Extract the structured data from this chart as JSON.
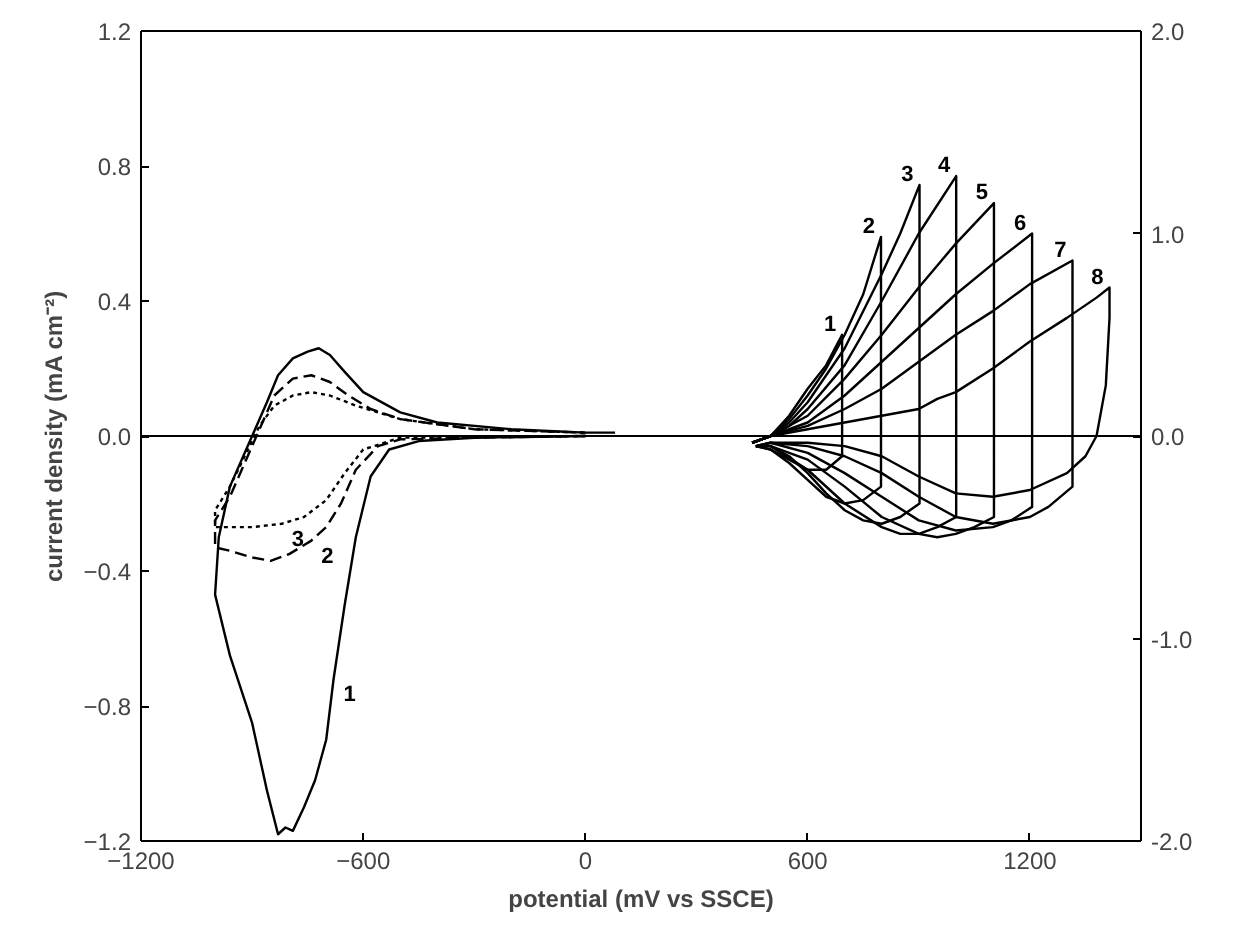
{
  "chart_data": {
    "type": "line",
    "xlabel": "potential (mV vs SSCE)",
    "ylabel": "current density (mA cm⁻²)",
    "xlim": [
      -1200,
      1500
    ],
    "xticks": [
      -1200,
      -600,
      0,
      600,
      1200
    ],
    "ylim": [
      -1.2,
      1.2
    ],
    "yticks": [
      -1.2,
      -0.8,
      -0.4,
      {
        "value": 0,
        "label": "0.0"
      },
      0.4,
      0.8,
      1.2
    ],
    "y2lim": [
      -2.0,
      2.0
    ],
    "y2ticks": [
      {
        "value": -2,
        "label": "-2.0"
      },
      {
        "value": -1,
        "label": "-1.0"
      },
      {
        "value": 0,
        "label": "0.0"
      },
      {
        "value": 1,
        "label": "1.0"
      },
      {
        "value": 2,
        "label": "2.0"
      }
    ],
    "grid": false,
    "marker": "none",
    "ref_lines": [
      {
        "axis": "y",
        "value": 0,
        "color": "#000000"
      }
    ],
    "series": [
      {
        "color": "#000000",
        "line_style": "solid",
        "x": [
          0,
          -300,
          -450,
          -530,
          -580,
          -620,
          -650,
          -680,
          -700,
          -730,
          -760,
          -790,
          -810,
          -830,
          -860,
          -900,
          -960,
          -1000,
          -990,
          -960,
          -900,
          -860,
          -830,
          -790,
          -750,
          -720,
          -690,
          -650,
          -600,
          -500,
          -400,
          -200,
          0,
          80
        ],
        "values": [
          0,
          -0.005,
          -0.015,
          -0.04,
          -0.12,
          -0.3,
          -0.5,
          -0.72,
          -0.9,
          -1.02,
          -1.1,
          -1.17,
          -1.16,
          -1.18,
          -1.05,
          -0.85,
          -0.65,
          -0.47,
          -0.3,
          -0.15,
          0.0,
          0.1,
          0.18,
          0.23,
          0.25,
          0.26,
          0.24,
          0.19,
          0.13,
          0.07,
          0.04,
          0.02,
          0.01,
          0.01
        ]
      },
      {
        "color": "#000000",
        "line_style": "dashed",
        "x": [
          0,
          -300,
          -500,
          -560,
          -620,
          -660,
          -700,
          -740,
          -800,
          -850,
          -900,
          -960,
          -1000,
          -1000,
          -960,
          -920,
          -880,
          -840,
          -790,
          -740,
          -690,
          -640,
          -580,
          -500,
          -300,
          0
        ],
        "values": [
          0,
          -0.005,
          -0.01,
          -0.03,
          -0.1,
          -0.2,
          -0.27,
          -0.31,
          -0.35,
          -0.37,
          -0.36,
          -0.34,
          -0.33,
          -0.25,
          -0.18,
          -0.08,
          0.02,
          0.12,
          0.17,
          0.18,
          0.16,
          0.12,
          0.08,
          0.05,
          0.02,
          0.01
        ]
      },
      {
        "color": "#000000",
        "line_style": "dotted",
        "x": [
          0,
          -500,
          -600,
          -650,
          -700,
          -760,
          -820,
          -900,
          -1000,
          -1000,
          -960,
          -920,
          -880,
          -840,
          -790,
          -740,
          -690,
          -620,
          -500,
          -300,
          0
        ],
        "values": [
          0,
          -0.005,
          -0.04,
          -0.11,
          -0.19,
          -0.24,
          -0.26,
          -0.27,
          -0.27,
          -0.22,
          -0.15,
          -0.06,
          0.03,
          0.09,
          0.12,
          0.13,
          0.12,
          0.09,
          0.05,
          0.02,
          0.01
        ]
      },
      {
        "color": "#000000",
        "line_style": "solid",
        "x": [
          450,
          500,
          550,
          600,
          650,
          693,
          693,
          650,
          600,
          550,
          500,
          460
        ],
        "values": [
          -0.02,
          0.0,
          0.06,
          0.14,
          0.21,
          0.3,
          -0.06,
          -0.1,
          -0.1,
          -0.07,
          -0.04,
          -0.03
        ]
      },
      {
        "color": "#000000",
        "line_style": "solid",
        "x": [
          450,
          500,
          550,
          600,
          650,
          700,
          750,
          798,
          798,
          750,
          700,
          650,
          600,
          550,
          500,
          460
        ],
        "values": [
          -0.02,
          0.0,
          0.05,
          0.12,
          0.2,
          0.3,
          0.42,
          0.59,
          -0.15,
          -0.19,
          -0.2,
          -0.18,
          -0.13,
          -0.08,
          -0.04,
          -0.03
        ]
      },
      {
        "color": "#000000",
        "line_style": "solid",
        "x": [
          450,
          500,
          550,
          600,
          700,
          800,
          850,
          902,
          902,
          850,
          800,
          750,
          700,
          650,
          600,
          550,
          500,
          460
        ],
        "values": [
          -0.02,
          0.0,
          0.04,
          0.1,
          0.26,
          0.48,
          0.6,
          0.744,
          -0.2,
          -0.24,
          -0.26,
          -0.25,
          -0.22,
          -0.17,
          -0.11,
          -0.06,
          -0.03,
          -0.03
        ]
      },
      {
        "color": "#000000",
        "line_style": "solid",
        "x": [
          450,
          500,
          550,
          600,
          700,
          800,
          900,
          1001,
          1001,
          950,
          900,
          850,
          800,
          700,
          600,
          500,
          460
        ],
        "values": [
          -0.02,
          0.0,
          0.03,
          0.08,
          0.21,
          0.4,
          0.6,
          0.77,
          -0.24,
          -0.27,
          -0.29,
          -0.29,
          -0.27,
          -0.2,
          -0.1,
          -0.03,
          -0.03
        ]
      },
      {
        "color": "#000000",
        "line_style": "solid",
        "x": [
          450,
          500,
          600,
          700,
          800,
          900,
          1000,
          1103,
          1103,
          1050,
          1000,
          950,
          900,
          800,
          700,
          600,
          500,
          460
        ],
        "values": [
          -0.02,
          0.0,
          0.06,
          0.17,
          0.3,
          0.44,
          0.57,
          0.69,
          -0.24,
          -0.27,
          -0.29,
          -0.3,
          -0.29,
          -0.24,
          -0.15,
          -0.07,
          -0.03,
          -0.03
        ]
      },
      {
        "color": "#000000",
        "line_style": "solid",
        "x": [
          450,
          500,
          600,
          700,
          800,
          900,
          1000,
          1100,
          1206,
          1206,
          1150,
          1100,
          1000,
          900,
          800,
          700,
          600,
          500,
          460
        ],
        "values": [
          -0.02,
          0.0,
          0.04,
          0.12,
          0.22,
          0.32,
          0.42,
          0.51,
          0.6,
          -0.21,
          -0.25,
          -0.27,
          -0.28,
          -0.25,
          -0.18,
          -0.11,
          -0.05,
          -0.02,
          -0.03
        ]
      },
      {
        "color": "#000000",
        "line_style": "solid",
        "x": [
          450,
          500,
          600,
          700,
          800,
          900,
          1000,
          1100,
          1200,
          1315,
          1315,
          1250,
          1200,
          1100,
          1000,
          900,
          800,
          700,
          600,
          500,
          460
        ],
        "values": [
          -0.02,
          0.0,
          0.03,
          0.08,
          0.14,
          0.22,
          0.3,
          0.37,
          0.45,
          0.52,
          -0.15,
          -0.21,
          -0.24,
          -0.26,
          -0.24,
          -0.18,
          -0.11,
          -0.06,
          -0.03,
          -0.02,
          -0.03
        ]
      },
      {
        "color": "#000000",
        "line_style": "solid",
        "x": [
          450,
          500,
          600,
          700,
          800,
          900,
          950,
          1000,
          1100,
          1200,
          1300,
          1380,
          1415,
          1415,
          1405,
          1380,
          1350,
          1300,
          1200,
          1100,
          1000,
          900,
          800,
          700,
          600,
          500,
          460
        ],
        "values": [
          -0.02,
          0.0,
          0.02,
          0.04,
          0.06,
          0.08,
          0.11,
          0.13,
          0.2,
          0.28,
          0.35,
          0.41,
          0.44,
          0.35,
          0.15,
          0.0,
          -0.06,
          -0.11,
          -0.16,
          -0.18,
          -0.17,
          -0.12,
          -0.06,
          -0.03,
          -0.02,
          -0.02,
          -0.03
        ]
      }
    ],
    "annotations": [
      {
        "text": "1",
        "x": -680,
        "y": -0.72
      },
      {
        "text": "2",
        "x": -740,
        "y": -0.31
      },
      {
        "text": "3",
        "x": -820,
        "y": -0.26
      },
      {
        "text": "1",
        "x": 693,
        "y": 0.3
      },
      {
        "text": "2",
        "x": 798,
        "y": 0.59
      },
      {
        "text": "3",
        "x": 902,
        "y": 0.744
      },
      {
        "text": "4",
        "x": 1001,
        "y": 0.77
      },
      {
        "text": "5",
        "x": 1103,
        "y": 0.69
      },
      {
        "text": "6",
        "x": 1206,
        "y": 0.6
      },
      {
        "text": "7",
        "x": 1315,
        "y": 0.52
      },
      {
        "text": "8",
        "x": 1415,
        "y": 0.44
      }
    ]
  }
}
